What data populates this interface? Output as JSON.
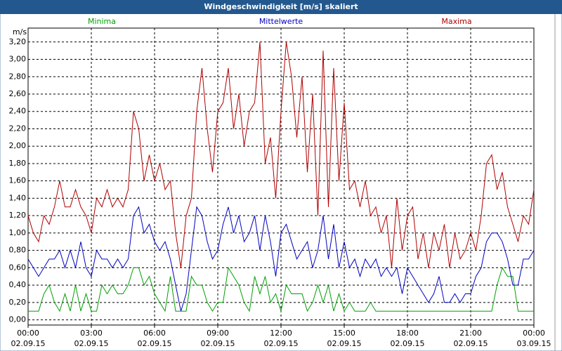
{
  "chart_data": {
    "type": "line",
    "title": "Windgeschwindigkeit [m/s] skaliert",
    "y_unit": "m/s",
    "x": [
      0,
      0.25,
      0.5,
      0.75,
      1,
      1.25,
      1.5,
      1.75,
      2,
      2.25,
      2.5,
      2.75,
      3,
      3.25,
      3.5,
      3.75,
      4,
      4.25,
      4.5,
      4.75,
      5,
      5.25,
      5.5,
      5.75,
      6,
      6.25,
      6.5,
      6.75,
      7,
      7.25,
      7.5,
      7.75,
      8,
      8.25,
      8.5,
      8.75,
      9,
      9.25,
      9.5,
      9.75,
      10,
      10.25,
      10.5,
      10.75,
      11,
      11.25,
      11.5,
      11.75,
      12,
      12.25,
      12.5,
      12.75,
      13,
      13.25,
      13.5,
      13.75,
      14,
      14.25,
      14.5,
      14.75,
      15,
      15.25,
      15.5,
      15.75,
      16,
      16.25,
      16.5,
      16.75,
      17,
      17.25,
      17.5,
      17.75,
      18,
      18.25,
      18.5,
      18.75,
      19,
      19.25,
      19.5,
      19.75,
      20,
      20.25,
      20.5,
      20.75,
      21,
      21.25,
      21.5,
      21.75,
      22,
      22.25,
      22.5,
      22.75,
      23,
      23.25,
      23.5,
      23.75,
      24
    ],
    "series": [
      {
        "name": "Minima",
        "color": "#00a000",
        "values": [
          0.1,
          0.1,
          0.1,
          0.3,
          0.4,
          0.2,
          0.1,
          0.3,
          0.1,
          0.4,
          0.1,
          0.3,
          0.1,
          0.1,
          0.4,
          0.3,
          0.4,
          0.3,
          0.3,
          0.4,
          0.6,
          0.6,
          0.4,
          0.5,
          0.3,
          0.2,
          0.1,
          0.5,
          0.1,
          0.1,
          0.1,
          0.5,
          0.4,
          0.4,
          0.2,
          0.1,
          0.2,
          0.2,
          0.6,
          0.5,
          0.4,
          0.2,
          0.1,
          0.5,
          0.3,
          0.5,
          0.2,
          0.3,
          0.1,
          0.4,
          0.3,
          0.3,
          0.3,
          0.1,
          0.2,
          0.4,
          0.2,
          0.4,
          0.1,
          0.3,
          0.1,
          0.2,
          0.1,
          0.1,
          0.1,
          0.2,
          0.1,
          0.1,
          0.1,
          0.1,
          0.1,
          0.1,
          0.1,
          0.1,
          0.1,
          0.1,
          0.1,
          0.1,
          0.1,
          0.1,
          0.1,
          0.1,
          0.1,
          0.1,
          0.1,
          0.1,
          0.1,
          0.1,
          0.1,
          0.4,
          0.6,
          0.5,
          0.5,
          0.1,
          0.1,
          0.1,
          0.1
        ]
      },
      {
        "name": "Mittelwerte",
        "color": "#0000c0",
        "values": [
          0.7,
          0.6,
          0.5,
          0.6,
          0.7,
          0.7,
          0.8,
          0.6,
          0.8,
          0.6,
          0.9,
          0.6,
          0.5,
          0.8,
          0.7,
          0.7,
          0.6,
          0.7,
          0.6,
          0.7,
          1.2,
          1.3,
          1.0,
          1.1,
          0.9,
          0.8,
          0.9,
          0.7,
          0.4,
          0.1,
          0.3,
          0.8,
          1.3,
          1.2,
          0.9,
          0.7,
          0.8,
          1.1,
          1.3,
          1.0,
          1.2,
          0.9,
          1.0,
          1.2,
          0.8,
          1.2,
          0.9,
          0.5,
          1.0,
          1.1,
          0.9,
          0.7,
          0.8,
          0.9,
          0.6,
          0.8,
          1.2,
          0.7,
          1.1,
          0.6,
          0.9,
          0.6,
          0.7,
          0.5,
          0.7,
          0.6,
          0.7,
          0.5,
          0.6,
          0.5,
          0.6,
          0.3,
          0.6,
          0.5,
          0.4,
          0.3,
          0.2,
          0.3,
          0.5,
          0.2,
          0.2,
          0.3,
          0.2,
          0.3,
          0.3,
          0.5,
          0.6,
          0.9,
          1.0,
          1.0,
          0.9,
          0.7,
          0.4,
          0.4,
          0.7,
          0.7,
          0.8
        ]
      },
      {
        "name": "Maxima",
        "color": "#b00000",
        "values": [
          1.2,
          1.0,
          0.9,
          1.2,
          1.1,
          1.3,
          1.6,
          1.3,
          1.3,
          1.5,
          1.3,
          1.2,
          1.0,
          1.4,
          1.3,
          1.5,
          1.3,
          1.4,
          1.3,
          1.5,
          2.4,
          2.2,
          1.6,
          1.9,
          1.6,
          1.8,
          1.5,
          1.6,
          1.0,
          0.6,
          1.2,
          1.4,
          2.4,
          2.9,
          2.2,
          1.7,
          2.4,
          2.5,
          2.9,
          2.2,
          2.6,
          2.0,
          2.4,
          2.5,
          3.2,
          1.8,
          2.1,
          1.4,
          2.4,
          3.2,
          2.8,
          2.1,
          2.8,
          1.7,
          2.6,
          1.2,
          3.1,
          1.3,
          2.9,
          1.6,
          2.5,
          1.5,
          1.6,
          1.3,
          1.6,
          1.2,
          1.3,
          1.0,
          1.2,
          0.6,
          1.4,
          0.8,
          1.2,
          1.3,
          0.7,
          1.0,
          0.6,
          1.0,
          0.8,
          1.1,
          0.6,
          1.0,
          0.7,
          0.8,
          1.0,
          0.8,
          1.2,
          1.8,
          1.9,
          1.5,
          1.7,
          1.3,
          1.1,
          0.9,
          1.2,
          1.1,
          1.5
        ]
      }
    ],
    "xlim": [
      0,
      24
    ],
    "xticks": [
      {
        "value": 0,
        "label": "00:00",
        "date": "02.09.15"
      },
      {
        "value": 3,
        "label": "03:00",
        "date": "02.09.15"
      },
      {
        "value": 6,
        "label": "06:00",
        "date": "02.09.15"
      },
      {
        "value": 9,
        "label": "09:00",
        "date": "02.09.15"
      },
      {
        "value": 12,
        "label": "12:00",
        "date": "02.09.15"
      },
      {
        "value": 15,
        "label": "15:00",
        "date": "02.09.15"
      },
      {
        "value": 18,
        "label": "18:00",
        "date": "02.09.15"
      },
      {
        "value": 21,
        "label": "21:00",
        "date": "02.09.15"
      },
      {
        "value": 24,
        "label": "00:00",
        "date": "03.09.15"
      }
    ],
    "ylim": [
      -0.06,
      3.36
    ],
    "yticks": [
      {
        "value": 0,
        "label": "0,00"
      },
      {
        "value": 0.2,
        "label": "0,20"
      },
      {
        "value": 0.4,
        "label": "0,40"
      },
      {
        "value": 0.6,
        "label": "0,60"
      },
      {
        "value": 0.8,
        "label": "0,80"
      },
      {
        "value": 1,
        "label": "1,00"
      },
      {
        "value": 1.2,
        "label": "1,20"
      },
      {
        "value": 1.4,
        "label": "1,40"
      },
      {
        "value": 1.6,
        "label": "1,60"
      },
      {
        "value": 1.8,
        "label": "1,80"
      },
      {
        "value": 2,
        "label": "2,00"
      },
      {
        "value": 2.2,
        "label": "2,20"
      },
      {
        "value": 2.4,
        "label": "2,40"
      },
      {
        "value": 2.6,
        "label": "2,60"
      },
      {
        "value": 2.8,
        "label": "2,80"
      },
      {
        "value": 3,
        "label": "3,00"
      },
      {
        "value": 3.2,
        "label": "3,20"
      }
    ],
    "grid": true
  }
}
